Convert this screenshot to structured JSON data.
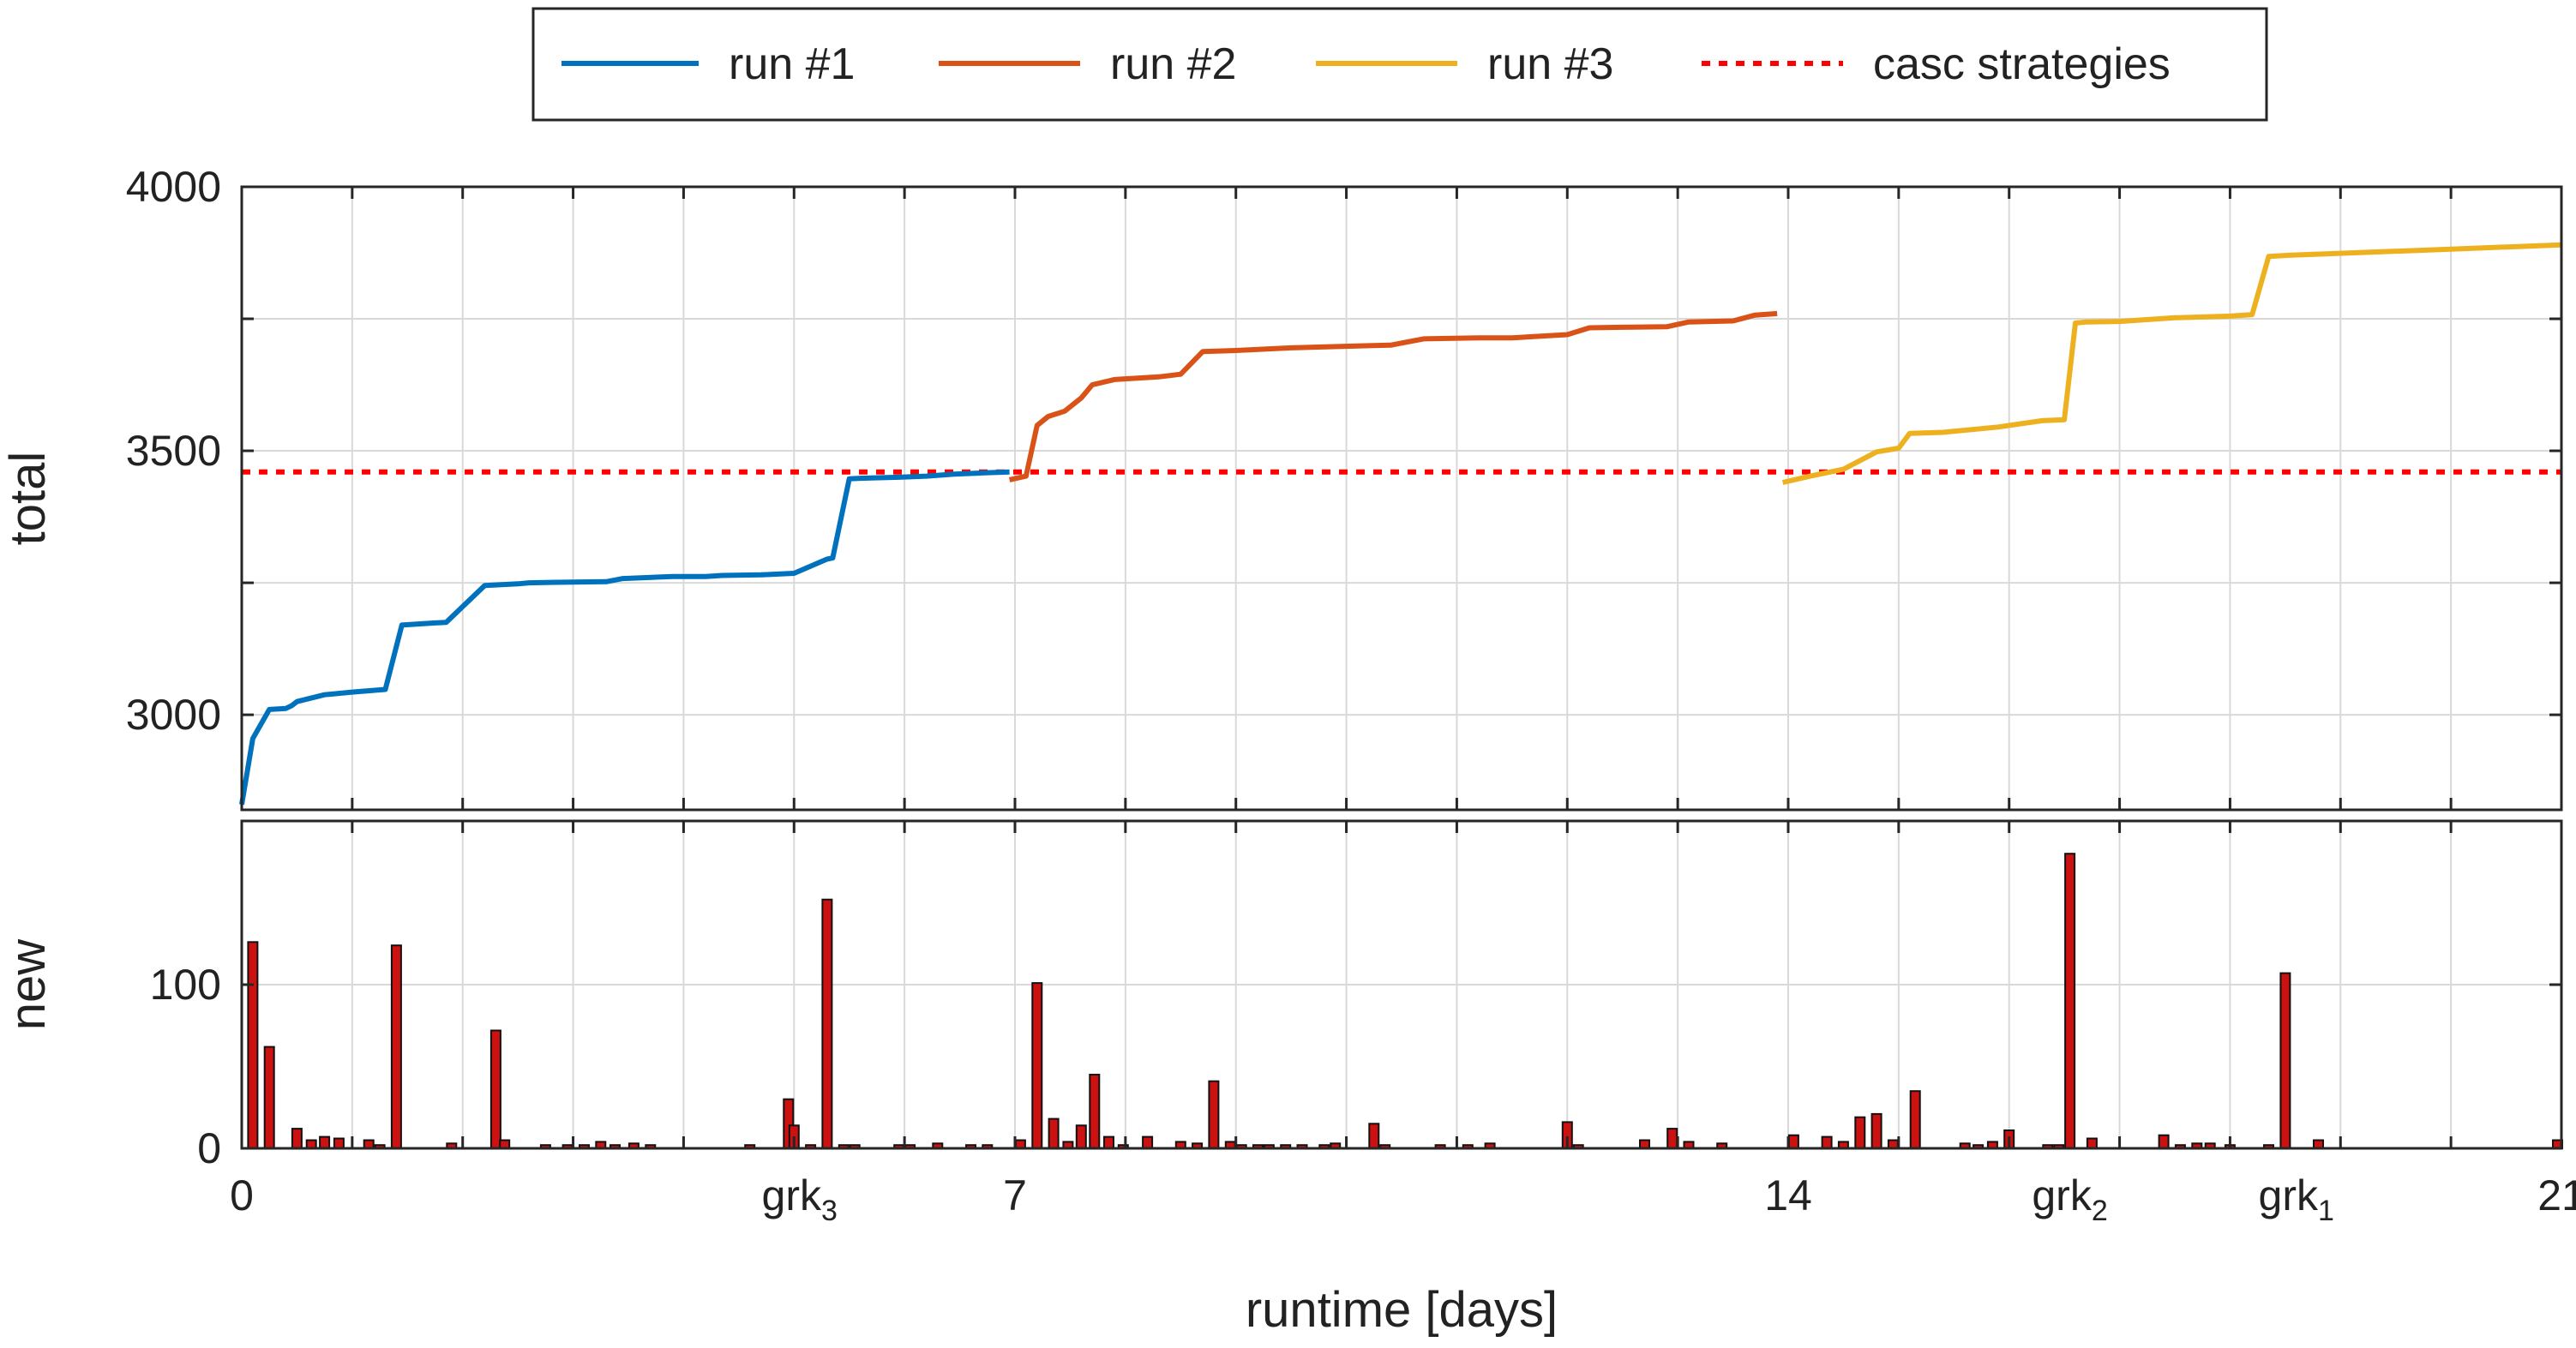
{
  "chart_data": [
    {
      "type": "line",
      "ylabel": "total",
      "xlim": [
        0,
        21
      ],
      "ylim": [
        2820,
        4000
      ],
      "y_ticks": [
        3000,
        3500,
        4000
      ],
      "grid": true,
      "legend": {
        "placement": "top-center",
        "entries": [
          {
            "label": "run #1",
            "color": "#0072BD",
            "style": "solid"
          },
          {
            "label": "run #2",
            "color": "#D95319",
            "style": "solid"
          },
          {
            "label": "run #3",
            "color": "#EDB120",
            "style": "solid"
          },
          {
            "label": "casc strategies",
            "color": "#FF0000",
            "style": "dotted"
          }
        ]
      },
      "reference_line": {
        "name": "casc strategies",
        "y": 3460,
        "color": "#FF0000"
      },
      "series": [
        {
          "name": "run #1",
          "color": "#0072BD",
          "x": [
            0,
            0.1,
            0.25,
            0.4,
            0.45,
            0.5,
            0.75,
            1.0,
            1.3,
            1.45,
            1.6,
            1.75,
            1.85,
            2.2,
            2.5,
            2.6,
            2.85,
            3.3,
            3.45,
            3.9,
            4.2,
            4.35,
            4.7,
            5.0,
            5.3,
            5.35,
            5.5,
            5.6,
            5.95,
            6.2,
            6.45,
            6.7,
            6.95
          ],
          "y": [
            2830,
            2955,
            3010,
            3012,
            3017,
            3025,
            3038,
            3043,
            3048,
            3170,
            3172,
            3174,
            3175,
            3245,
            3248,
            3250,
            3251,
            3252,
            3258,
            3262,
            3262,
            3264,
            3265,
            3268,
            3295,
            3297,
            3447,
            3448,
            3450,
            3452,
            3456,
            3458,
            3460
          ]
        },
        {
          "name": "run #2",
          "color": "#D95319",
          "x": [
            6.95,
            7.1,
            7.2,
            7.3,
            7.45,
            7.6,
            7.7,
            7.9,
            8.3,
            8.5,
            8.7,
            9.0,
            9.5,
            10.2,
            10.4,
            10.7,
            11.2,
            11.5,
            12.0,
            12.2,
            12.5,
            12.9,
            13.1,
            13.5,
            13.7,
            13.9
          ],
          "y": [
            3445,
            3452,
            3548,
            3565,
            3575,
            3600,
            3625,
            3635,
            3640,
            3645,
            3688,
            3690,
            3695,
            3699,
            3700,
            3712,
            3714,
            3714,
            3720,
            3733,
            3734,
            3735,
            3744,
            3746,
            3757,
            3760
          ]
        },
        {
          "name": "run #3",
          "color": "#EDB120",
          "x": [
            13.95,
            14.2,
            14.5,
            14.8,
            15.0,
            15.1,
            15.4,
            15.9,
            16.3,
            16.5,
            16.6,
            16.7,
            17.0,
            17.5,
            18.0,
            18.2,
            18.35,
            18.5,
            20.0,
            21.0
          ],
          "y": [
            3440,
            3452,
            3465,
            3498,
            3505,
            3533,
            3535,
            3545,
            3557,
            3559,
            3742,
            3744,
            3745,
            3752,
            3755,
            3758,
            3868,
            3870,
            3882,
            3890
          ]
        }
      ]
    },
    {
      "type": "bar",
      "xlabel": "runtime [days]",
      "ylabel": "new",
      "xlim": [
        0,
        21
      ],
      "ylim": [
        0,
        200
      ],
      "y_ticks": [
        0,
        100
      ],
      "grid": true,
      "color": "#CC1111",
      "x_ticks": [
        {
          "x": 0,
          "label": "0"
        },
        {
          "x": 5.05,
          "label": "grk",
          "sub": "3"
        },
        {
          "x": 7.0,
          "label": "7"
        },
        {
          "x": 14.0,
          "label": "14"
        },
        {
          "x": 16.55,
          "label": "grk",
          "sub": "2"
        },
        {
          "x": 18.6,
          "label": "grk",
          "sub": "1"
        },
        {
          "x": 21.0,
          "label": "21"
        }
      ],
      "series": [
        {
          "name": "new",
          "x": [
            0.1,
            0.25,
            0.5,
            0.63,
            0.75,
            0.88,
            1.15,
            1.25,
            1.4,
            1.9,
            2.3,
            2.38,
            2.75,
            2.95,
            3.1,
            3.25,
            3.38,
            3.55,
            3.7,
            4.6,
            4.95,
            5.0,
            5.15,
            5.3,
            5.45,
            5.55,
            5.95,
            6.05,
            6.3,
            6.6,
            6.75,
            7.05,
            7.2,
            7.35,
            7.48,
            7.6,
            7.72,
            7.85,
            7.98,
            8.2,
            8.5,
            8.65,
            8.8,
            8.95,
            9.05,
            9.2,
            9.3,
            9.45,
            9.6,
            9.8,
            9.9,
            10.25,
            10.35,
            10.85,
            11.1,
            11.3,
            12.0,
            12.1,
            12.7,
            12.95,
            13.1,
            13.4,
            14.05,
            14.35,
            14.5,
            14.65,
            14.8,
            14.95,
            15.15,
            15.6,
            15.72,
            15.85,
            16.0,
            16.35,
            16.45,
            16.55,
            16.75,
            17.4,
            17.55,
            17.7,
            17.82,
            18.0,
            18.35,
            18.5,
            18.8,
            21.0
          ],
          "values": [
            126,
            62,
            12,
            5,
            7,
            6,
            5,
            2,
            124,
            3,
            72,
            5,
            2,
            2,
            2,
            4,
            2,
            3,
            2,
            2,
            30,
            14,
            2,
            152,
            2,
            2,
            2,
            2,
            3,
            2,
            2,
            5,
            101,
            18,
            4,
            14,
            45,
            7,
            2,
            7,
            4,
            3,
            41,
            4,
            2,
            2,
            2,
            2,
            2,
            2,
            3,
            15,
            2,
            2,
            2,
            3,
            16,
            2,
            5,
            12,
            4,
            3,
            8,
            7,
            4,
            19,
            21,
            5,
            35,
            3,
            2,
            4,
            11,
            2,
            2,
            180,
            6,
            8,
            2,
            3,
            3,
            2,
            2,
            107,
            5,
            5
          ]
        }
      ]
    }
  ]
}
